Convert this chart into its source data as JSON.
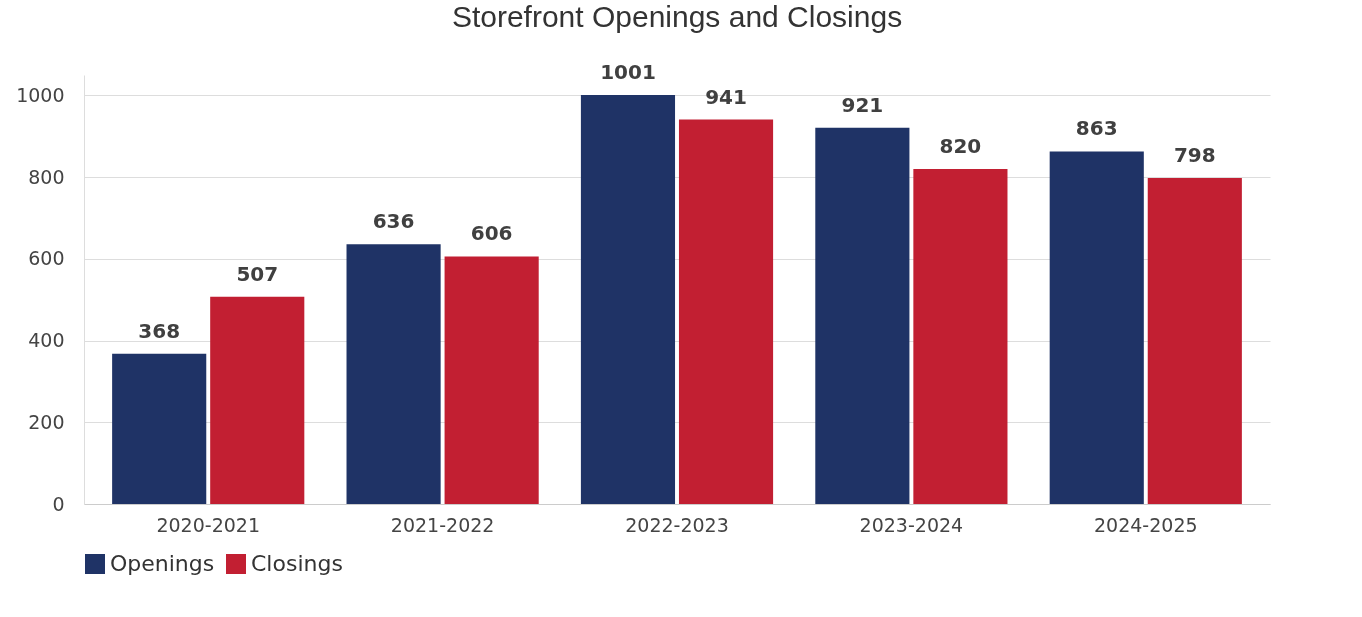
{
  "chart_data": {
    "type": "bar",
    "title": "Storefront Openings and Closings",
    "categories": [
      "2020-2021",
      "2021-2022",
      "2022-2023",
      "2023-2024",
      "2024-2025"
    ],
    "series": [
      {
        "name": "Openings",
        "color": "#1f3366",
        "values": [
          368,
          636,
          1001,
          921,
          863
        ]
      },
      {
        "name": "Closings",
        "color": "#c21f32",
        "values": [
          507,
          606,
          941,
          820,
          798
        ]
      }
    ],
    "ylim": [
      0,
      1050
    ],
    "yticks": [
      0,
      200,
      400,
      600,
      800,
      1000
    ],
    "grid": "y",
    "legend": "bottom",
    "data_labels": true
  }
}
